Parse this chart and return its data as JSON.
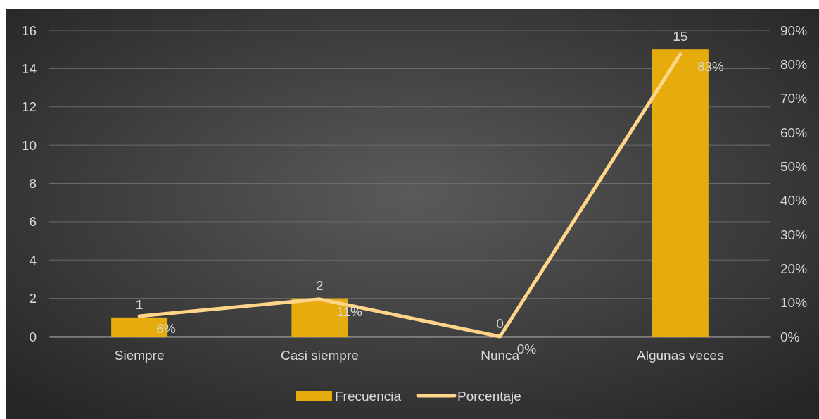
{
  "chart_data": {
    "type": "bar",
    "categories": [
      "Siempre",
      "Casi siempre",
      "Nunca",
      "Algunas veces"
    ],
    "series": [
      {
        "name": "Frecuencia",
        "color": "#e6ab0c",
        "values": [
          1,
          2,
          0,
          15
        ],
        "value_labels": [
          "1",
          "2",
          "0",
          "15"
        ]
      },
      {
        "name": "Porcentaje",
        "type": "line",
        "axis": "y2",
        "color": "#ffd58a",
        "values": [
          6,
          11,
          0,
          83
        ],
        "value_labels": [
          "6%",
          "11%",
          "0%",
          "83%"
        ]
      }
    ],
    "ylim": [
      0,
      16
    ],
    "yticks": [
      0,
      2,
      4,
      6,
      8,
      10,
      12,
      14,
      16
    ],
    "y2lim": [
      0,
      90
    ],
    "y2ticks": [
      {
        "value": 0,
        "label": "0%"
      },
      {
        "value": 10,
        "label": "10%"
      },
      {
        "value": 20,
        "label": "20%"
      },
      {
        "value": 30,
        "label": "30%"
      },
      {
        "value": 40,
        "label": "40%"
      },
      {
        "value": 50,
        "label": "50%"
      },
      {
        "value": 60,
        "label": "60%"
      },
      {
        "value": 70,
        "label": "70%"
      },
      {
        "value": 80,
        "label": "80%"
      },
      {
        "value": 90,
        "label": "90%"
      }
    ],
    "grid": "y",
    "legend": "bottom",
    "marker": "none",
    "line_style": "solid"
  }
}
